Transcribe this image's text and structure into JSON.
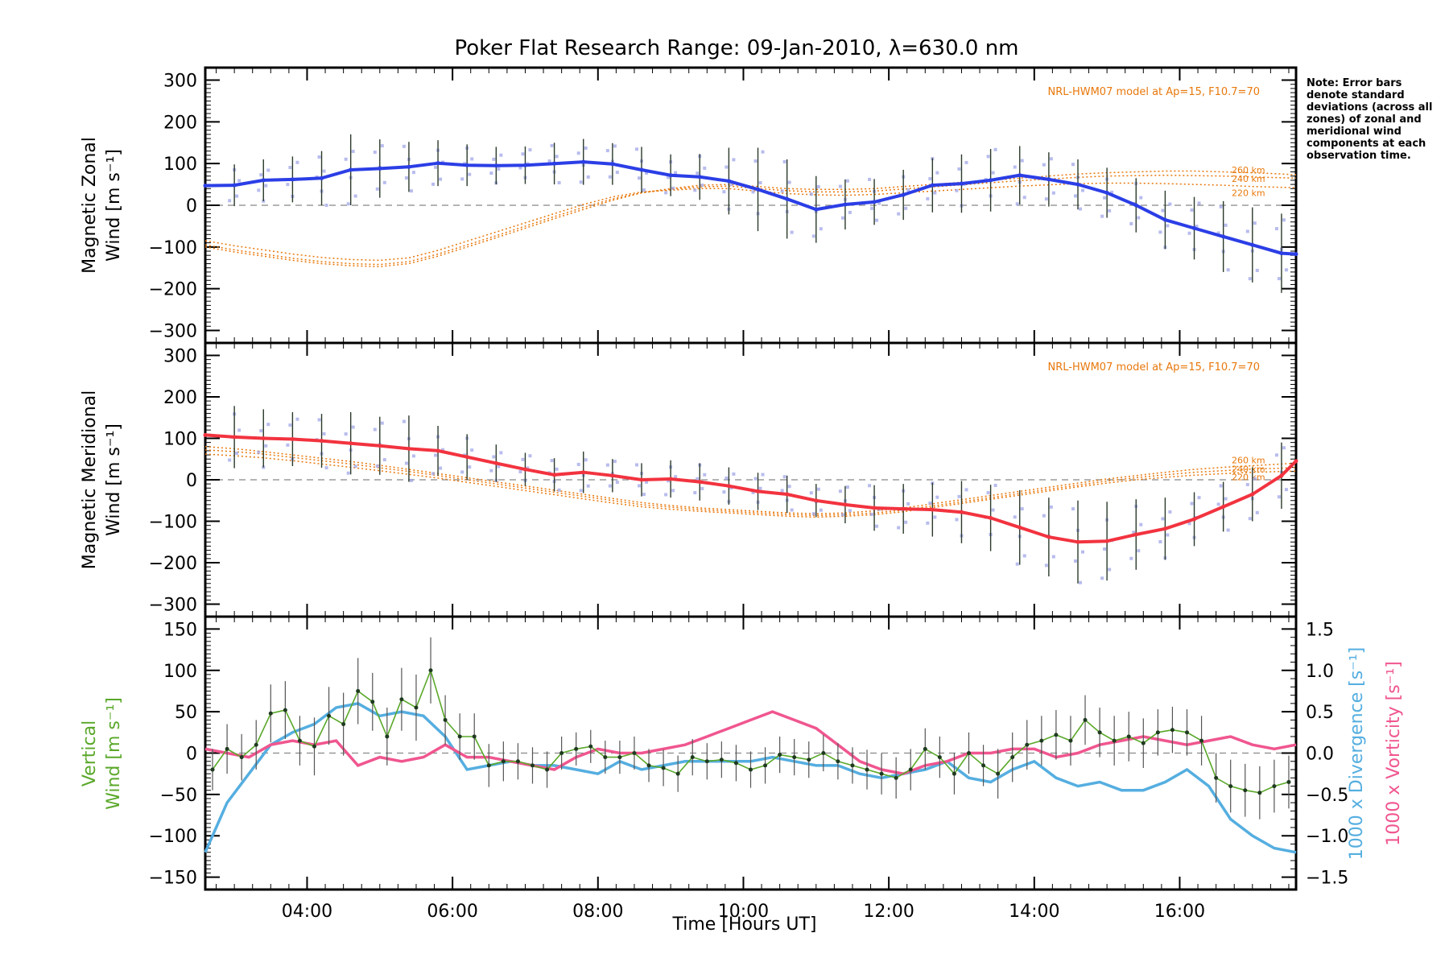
{
  "title": "Poker Flat Research Range: 09-Jan-2010, λ=630.0 nm",
  "note": "Note: Error bars denote standard deviations (across all zones) of zonal and meridional wind components at each observation time.",
  "x_axis": {
    "label": "Time [Hours UT]",
    "range": [
      2.6,
      17.6
    ],
    "ticks": [
      4,
      6,
      8,
      10,
      12,
      14,
      16
    ],
    "tick_labels": [
      "04:00",
      "06:00",
      "08:00",
      "10:00",
      "12:00",
      "14:00",
      "16:00"
    ]
  },
  "colors": {
    "zonal": "#2b3ee6",
    "meridional": "#f2333f",
    "model": "#e8780c",
    "vertical": "#5aa82a",
    "divergence": "#55aee0",
    "vorticity": "#f0568f",
    "scatter": "#9aa0e6",
    "errorbar": "#2a3a2a"
  },
  "chart_data": [
    {
      "type": "line",
      "panel": "zonal",
      "ylabel": "Magnetic Zonal Wind [m s⁻¹]",
      "ylim": [
        -330,
        330
      ],
      "yticks": [
        -300,
        -200,
        -100,
        0,
        100,
        200,
        300
      ],
      "model_label": "NRL-HWM07 model at Ap=15, F10.7=70",
      "model_altitude_labels": [
        "260 km",
        "240 km",
        "220 km"
      ],
      "x": [
        2.6,
        3.0,
        3.4,
        3.8,
        4.2,
        4.6,
        5.0,
        5.4,
        5.8,
        6.2,
        6.6,
        7.0,
        7.4,
        7.8,
        8.2,
        8.6,
        9.0,
        9.4,
        9.8,
        10.2,
        10.6,
        11.0,
        11.4,
        11.8,
        12.2,
        12.6,
        13.0,
        13.4,
        13.8,
        14.2,
        14.6,
        15.0,
        15.4,
        15.8,
        16.2,
        16.6,
        17.0,
        17.4,
        17.6
      ],
      "series": [
        {
          "name": "Zonal wind",
          "values": [
            47,
            48,
            60,
            62,
            65,
            85,
            88,
            92,
            101,
            96,
            95,
            96,
            100,
            104,
            99,
            85,
            72,
            68,
            58,
            38,
            15,
            -10,
            2,
            8,
            25,
            48,
            52,
            60,
            72,
            62,
            50,
            30,
            0,
            -35,
            -55,
            -75,
            -95,
            -115,
            -117
          ]
        },
        {
          "name": "Model 260 km",
          "values": [
            -100,
            -112,
            -122,
            -132,
            -140,
            -145,
            -147,
            -140,
            -122,
            -100,
            -78,
            -55,
            -32,
            -10,
            12,
            30,
            40,
            48,
            50,
            45,
            40,
            38,
            38,
            40,
            45,
            50,
            55,
            60,
            65,
            70,
            75,
            78,
            80,
            82,
            82,
            80,
            78,
            75,
            73
          ]
        },
        {
          "name": "Model 240 km",
          "values": [
            -95,
            -107,
            -117,
            -127,
            -135,
            -140,
            -142,
            -135,
            -117,
            -95,
            -73,
            -50,
            -27,
            -5,
            15,
            30,
            38,
            44,
            46,
            40,
            35,
            32,
            32,
            34,
            39,
            44,
            49,
            54,
            59,
            63,
            67,
            70,
            71,
            72,
            71,
            70,
            68,
            66,
            65
          ]
        },
        {
          "name": "Model 220 km",
          "values": [
            -85,
            -97,
            -107,
            -117,
            -125,
            -130,
            -132,
            -126,
            -108,
            -86,
            -64,
            -42,
            -20,
            2,
            20,
            32,
            36,
            40,
            40,
            34,
            28,
            25,
            24,
            26,
            30,
            34,
            38,
            42,
            46,
            49,
            52,
            53,
            53,
            52,
            50,
            48,
            45,
            43,
            42
          ]
        }
      ],
      "errors": [
        45,
        50,
        50,
        55,
        65,
        85,
        70,
        60,
        55,
        50,
        45,
        45,
        50,
        55,
        50,
        55,
        50,
        55,
        80,
        100,
        95,
        80,
        60,
        55,
        60,
        65,
        70,
        75,
        70,
        65,
        60,
        60,
        65,
        70,
        75,
        85,
        90,
        95,
        90
      ]
    },
    {
      "type": "line",
      "panel": "meridional",
      "ylabel": "Magnetic Meridional Wind [m s⁻¹]",
      "ylim": [
        -330,
        330
      ],
      "yticks": [
        -300,
        -200,
        -100,
        0,
        100,
        200,
        300
      ],
      "model_label": "NRL-HWM07 model at Ap=15, F10.7=70",
      "model_altitude_labels": [
        "260 km",
        "240 km",
        "220 km"
      ],
      "x": [
        2.6,
        3.0,
        3.4,
        3.8,
        4.2,
        4.6,
        5.0,
        5.4,
        5.8,
        6.2,
        6.6,
        7.0,
        7.4,
        7.8,
        8.2,
        8.6,
        9.0,
        9.4,
        9.8,
        10.2,
        10.6,
        11.0,
        11.4,
        11.8,
        12.2,
        12.6,
        13.0,
        13.4,
        13.8,
        14.2,
        14.6,
        15.0,
        15.4,
        15.8,
        16.2,
        16.6,
        17.0,
        17.4,
        17.6
      ],
      "series": [
        {
          "name": "Meridional wind",
          "values": [
            108,
            103,
            100,
            98,
            94,
            88,
            82,
            75,
            70,
            55,
            40,
            25,
            12,
            18,
            10,
            0,
            2,
            -5,
            -15,
            -28,
            -35,
            -50,
            -60,
            -68,
            -70,
            -72,
            -78,
            -92,
            -115,
            -138,
            -150,
            -148,
            -132,
            -118,
            -95,
            -65,
            -35,
            10,
            45
          ]
        },
        {
          "name": "Model 260 km",
          "values": [
            80,
            75,
            68,
            60,
            52,
            44,
            35,
            25,
            15,
            5,
            -5,
            -15,
            -25,
            -35,
            -45,
            -55,
            -62,
            -68,
            -72,
            -76,
            -80,
            -82,
            -80,
            -75,
            -68,
            -58,
            -48,
            -38,
            -28,
            -18,
            -8,
            2,
            10,
            18,
            25,
            30,
            34,
            38,
            40
          ]
        },
        {
          "name": "Model 240 km",
          "values": [
            72,
            68,
            62,
            54,
            46,
            38,
            29,
            20,
            10,
            0,
            -10,
            -20,
            -30,
            -40,
            -50,
            -60,
            -66,
            -72,
            -76,
            -80,
            -84,
            -86,
            -84,
            -80,
            -73,
            -63,
            -53,
            -43,
            -33,
            -23,
            -13,
            -3,
            5,
            12,
            18,
            22,
            26,
            28,
            30
          ]
        },
        {
          "name": "Model 220 km",
          "values": [
            62,
            58,
            53,
            46,
            38,
            30,
            22,
            13,
            4,
            -6,
            -16,
            -26,
            -36,
            -46,
            -56,
            -65,
            -71,
            -76,
            -80,
            -84,
            -88,
            -90,
            -88,
            -84,
            -77,
            -67,
            -57,
            -47,
            -37,
            -27,
            -17,
            -8,
            0,
            6,
            11,
            15,
            18,
            20,
            21
          ]
        }
      ],
      "errors": [
        60,
        75,
        70,
        65,
        65,
        75,
        70,
        80,
        60,
        55,
        45,
        40,
        40,
        50,
        40,
        40,
        45,
        45,
        45,
        45,
        45,
        40,
        45,
        55,
        60,
        65,
        75,
        80,
        90,
        95,
        100,
        95,
        85,
        75,
        65,
        60,
        65,
        80,
        80
      ]
    },
    {
      "type": "line",
      "panel": "vertical",
      "ylabel": "Vertical Wind [m s⁻¹]",
      "ylim": [
        -165,
        165
      ],
      "yticks": [
        -150,
        -100,
        -50,
        0,
        50,
        100,
        150
      ],
      "y2label_divergence": "1000 x Divergence [s⁻¹]",
      "y2label_vorticity": "1000 x Vorticity [s⁻¹]",
      "y2lim": [
        -1.65,
        1.65
      ],
      "y2ticks": [
        -1.5,
        -1.0,
        -0.5,
        0.0,
        0.5,
        1.0,
        1.5
      ],
      "y2tick_labels": [
        "−1.5",
        "−1.0",
        "−0.5",
        "0.0",
        "0.5",
        "1.0",
        "1.5"
      ],
      "vertical_x": [
        2.7,
        2.9,
        3.1,
        3.3,
        3.5,
        3.7,
        3.9,
        4.1,
        4.3,
        4.5,
        4.7,
        4.9,
        5.1,
        5.3,
        5.5,
        5.7,
        5.9,
        6.1,
        6.3,
        6.5,
        6.7,
        6.9,
        7.1,
        7.3,
        7.5,
        7.7,
        7.9,
        8.1,
        8.3,
        8.5,
        8.7,
        8.9,
        9.1,
        9.3,
        9.5,
        9.7,
        9.9,
        10.1,
        10.3,
        10.5,
        10.7,
        10.9,
        11.1,
        11.3,
        11.5,
        11.7,
        11.9,
        12.1,
        12.3,
        12.5,
        12.7,
        12.9,
        13.1,
        13.3,
        13.5,
        13.7,
        13.9,
        14.1,
        14.3,
        14.5,
        14.7,
        14.9,
        15.1,
        15.3,
        15.5,
        15.7,
        15.9,
        16.1,
        16.3,
        16.5,
        16.7,
        16.9,
        17.1,
        17.3,
        17.5
      ],
      "vertical_values": [
        -20,
        5,
        -5,
        10,
        48,
        52,
        15,
        8,
        45,
        35,
        75,
        62,
        20,
        65,
        55,
        100,
        40,
        20,
        20,
        -15,
        -10,
        -10,
        -15,
        -20,
        0,
        5,
        8,
        -5,
        -5,
        0,
        -15,
        -18,
        -25,
        -5,
        -10,
        -8,
        -12,
        -20,
        -15,
        -2,
        -5,
        -8,
        0,
        -10,
        -15,
        -20,
        -25,
        -30,
        -20,
        5,
        -5,
        -25,
        0,
        -15,
        -25,
        -5,
        10,
        15,
        22,
        15,
        40,
        25,
        15,
        20,
        12,
        25,
        28,
        25,
        15,
        -30,
        -40,
        -45,
        -48,
        -40,
        -35
      ],
      "vertical_errors": [
        25,
        30,
        28,
        30,
        35,
        35,
        30,
        35,
        35,
        38,
        40,
        35,
        35,
        38,
        40,
        40,
        30,
        28,
        28,
        26,
        24,
        22,
        22,
        22,
        20,
        20,
        20,
        20,
        20,
        20,
        20,
        22,
        22,
        22,
        22,
        22,
        22,
        22,
        22,
        22,
        22,
        22,
        22,
        22,
        22,
        24,
        25,
        25,
        25,
        25,
        25,
        25,
        25,
        25,
        30,
        30,
        30,
        30,
        30,
        30,
        30,
        30,
        30,
        30,
        30,
        28,
        28,
        28,
        30,
        30,
        32,
        32,
        32,
        32,
        32
      ],
      "div_x": [
        2.6,
        2.9,
        3.2,
        3.5,
        3.8,
        4.1,
        4.4,
        4.7,
        5.0,
        5.3,
        5.6,
        5.9,
        6.2,
        6.5,
        6.8,
        7.1,
        7.4,
        7.7,
        8.0,
        8.3,
        8.6,
        8.9,
        9.2,
        9.5,
        9.8,
        10.1,
        10.4,
        10.7,
        11.0,
        11.3,
        11.6,
        11.9,
        12.2,
        12.5,
        12.8,
        13.1,
        13.4,
        13.7,
        14.0,
        14.3,
        14.6,
        14.9,
        15.2,
        15.5,
        15.8,
        16.1,
        16.4,
        16.7,
        17.0,
        17.3,
        17.6
      ],
      "divergence": [
        -1.2,
        -0.6,
        -0.25,
        0.1,
        0.25,
        0.35,
        0.55,
        0.6,
        0.45,
        0.5,
        0.45,
        0.2,
        -0.2,
        -0.15,
        -0.1,
        -0.15,
        -0.15,
        -0.2,
        -0.25,
        -0.1,
        -0.2,
        -0.15,
        -0.1,
        -0.1,
        -0.1,
        -0.1,
        -0.05,
        -0.1,
        -0.15,
        -0.15,
        -0.25,
        -0.3,
        -0.25,
        -0.2,
        -0.1,
        -0.3,
        -0.35,
        -0.2,
        -0.1,
        -0.3,
        -0.4,
        -0.35,
        -0.45,
        -0.45,
        -0.35,
        -0.2,
        -0.4,
        -0.8,
        -1.0,
        -1.15,
        -1.2
      ],
      "vorticity": [
        0.05,
        0.0,
        -0.05,
        0.1,
        0.15,
        0.1,
        0.15,
        -0.15,
        -0.05,
        -0.1,
        -0.05,
        0.1,
        -0.05,
        -0.05,
        -0.1,
        -0.15,
        -0.2,
        -0.05,
        0.05,
        0.0,
        0.0,
        0.05,
        0.1,
        0.2,
        0.3,
        0.4,
        0.5,
        0.4,
        0.3,
        0.1,
        -0.1,
        -0.2,
        -0.25,
        -0.15,
        -0.1,
        0.0,
        0.0,
        0.05,
        0.05,
        -0.05,
        0.0,
        0.1,
        0.15,
        0.2,
        0.15,
        0.1,
        0.15,
        0.2,
        0.1,
        0.05,
        0.1
      ]
    }
  ]
}
